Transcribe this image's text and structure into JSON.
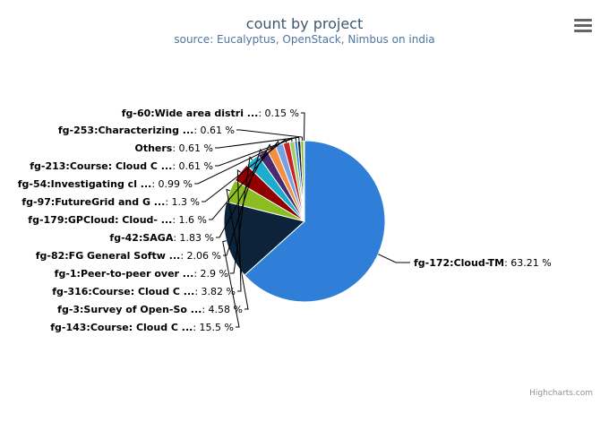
{
  "header": {
    "title": "count by project",
    "subtitle": "source: Eucalyptus, OpenStack, Nimbus on india"
  },
  "menu": {
    "icon": "hamburger-menu-icon"
  },
  "credits": {
    "text": "Highcharts.com"
  },
  "chart_data": {
    "type": "pie",
    "title": "count by project",
    "subtitle": "source: Eucalyptus, OpenStack, Nimbus on india",
    "unit": "%",
    "slices": [
      {
        "name": "fg-172:Cloud-TM",
        "value": 63.21,
        "color": "#2f7ed8"
      },
      {
        "name": "fg-143:Course: Cloud C ...",
        "value": 15.5,
        "color": "#0d233a"
      },
      {
        "name": "fg-3:Survey of Open-So ...",
        "value": 4.58,
        "color": "#8bbc21"
      },
      {
        "name": "fg-316:Course: Cloud C ...",
        "value": 3.82,
        "color": "#910000"
      },
      {
        "name": "fg-1:Peer-to-peer over ...",
        "value": 2.9,
        "color": "#1aadce"
      },
      {
        "name": "fg-82:FG General Softw ...",
        "value": 2.06,
        "color": "#492970"
      },
      {
        "name": "fg-42:SAGA",
        "value": 1.83,
        "color": "#f28f43"
      },
      {
        "name": "fg-179:GPCloud: Cloud- ...",
        "value": 1.6,
        "color": "#77a1e5"
      },
      {
        "name": "fg-97:FutureGrid and G ...",
        "value": 1.3,
        "color": "#c42525"
      },
      {
        "name": "fg-54:Investigating cl ...",
        "value": 0.99,
        "color": "#a6c96a"
      },
      {
        "name": "fg-213:Course: Cloud C ...",
        "value": 0.61,
        "color": "#2f7ed8"
      },
      {
        "name": "Others",
        "value": 0.61,
        "color": "#0d233a"
      },
      {
        "name": "fg-253:Characterizing ...",
        "value": 0.61,
        "color": "#8bbc21"
      },
      {
        "name": "fg-60:Wide area distri ...",
        "value": 0.15,
        "color": "#910000"
      }
    ]
  }
}
